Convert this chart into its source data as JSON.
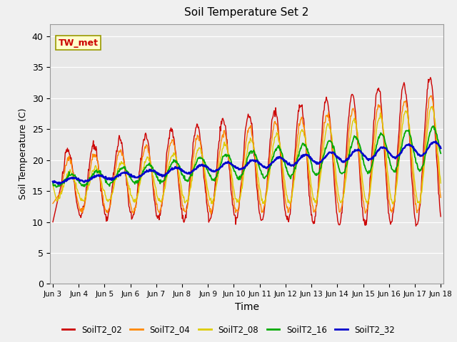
{
  "title": "Soil Temperature Set 2",
  "xlabel": "Time",
  "ylabel": "Soil Temperature (C)",
  "ylim": [
    0,
    42
  ],
  "yticks": [
    0,
    5,
    10,
    15,
    20,
    25,
    30,
    35,
    40
  ],
  "annotation": "TW_met",
  "fig_facecolor": "#f0f0f0",
  "plot_bg": "#e8e8e8",
  "series_colors": {
    "SoilT2_02": "#cc0000",
    "SoilT2_04": "#ff8800",
    "SoilT2_08": "#ddcc00",
    "SoilT2_16": "#00aa00",
    "SoilT2_32": "#0000cc"
  },
  "legend_labels": [
    "SoilT2_02",
    "SoilT2_04",
    "SoilT2_08",
    "SoilT2_16",
    "SoilT2_32"
  ],
  "xticklabels": [
    "Jun 3",
    "Jun 4",
    "Jun 5",
    "Jun 6",
    "Jun 7",
    "Jun 8",
    "Jun 9",
    "Jun 10",
    "Jun 11",
    "Jun 12",
    "Jun 13",
    "Jun 14",
    "Jun 15",
    "Jun 16",
    "Jun 17",
    "Jun 18"
  ],
  "n_days": 15,
  "points_per_day": 48
}
